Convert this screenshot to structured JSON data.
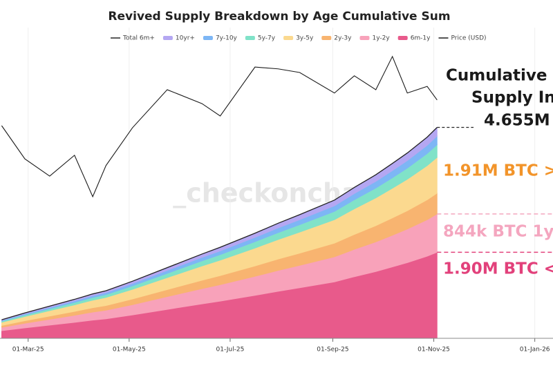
{
  "chart_data": {
    "type": "stacked-area-line",
    "title": "Revived Supply Breakdown by Age Cumulative Sum",
    "watermark": "_checkonchain",
    "x": [
      "2025-02-13",
      "2025-02-27",
      "2025-03-14",
      "2025-03-29",
      "2025-04-09",
      "2025-04-17",
      "2025-05-03",
      "2025-05-24",
      "2025-06-14",
      "2025-06-25",
      "2025-07-16",
      "2025-07-30",
      "2025-08-12",
      "2025-09-02",
      "2025-09-14",
      "2025-09-27",
      "2025-10-07",
      "2025-10-16",
      "2025-10-28",
      "2025-11-03"
    ],
    "xlim": [
      "2025-02-12",
      "2026-01-12"
    ],
    "xticks": [
      {
        "value": "2025-03-01",
        "label": "01-Mar-25"
      },
      {
        "value": "2025-05-01",
        "label": "01-May-25"
      },
      {
        "value": "2025-07-01",
        "label": "01-Jul-25"
      },
      {
        "value": "2025-09-01",
        "label": "01-Sep-25"
      },
      {
        "value": "2025-11-01",
        "label": "01-Nov-25"
      },
      {
        "value": "2026-01-01",
        "label": "01-Jan-26"
      }
    ],
    "ylim": [
      0,
      6.4
    ],
    "y2lim": [
      30000,
      126000
    ],
    "grid": true,
    "legend": "top",
    "series": [
      {
        "name": "Total 6m+",
        "kind": "line",
        "color": "#222222",
        "values": [
          0.41,
          0.56,
          0.71,
          0.86,
          0.98,
          1.05,
          1.26,
          1.56,
          1.86,
          2.01,
          2.32,
          2.54,
          2.73,
          3.05,
          3.33,
          3.61,
          3.86,
          4.09,
          4.44,
          4.655
        ]
      },
      {
        "name": "10yr+",
        "kind": "area",
        "color": "#b4a7f2",
        "values": [
          0.017,
          0.023,
          0.029,
          0.035,
          0.04,
          0.043,
          0.052,
          0.064,
          0.076,
          0.082,
          0.095,
          0.104,
          0.112,
          0.125,
          0.137,
          0.148,
          0.158,
          0.168,
          0.182,
          0.191
        ]
      },
      {
        "name": "7y-10y",
        "kind": "area",
        "color": "#7db6f5",
        "values": [
          0.017,
          0.023,
          0.029,
          0.035,
          0.04,
          0.043,
          0.051,
          0.064,
          0.076,
          0.082,
          0.095,
          0.104,
          0.111,
          0.124,
          0.136,
          0.147,
          0.158,
          0.167,
          0.181,
          0.19
        ]
      },
      {
        "name": "5y-7y",
        "kind": "area",
        "color": "#80e2c8",
        "values": [
          0.025,
          0.034,
          0.043,
          0.052,
          0.059,
          0.063,
          0.076,
          0.094,
          0.112,
          0.121,
          0.14,
          0.153,
          0.164,
          0.183,
          0.2,
          0.217,
          0.232,
          0.246,
          0.267,
          0.28
        ]
      },
      {
        "name": "3y-5y",
        "kind": "area",
        "color": "#fbd98f",
        "values": [
          0.07,
          0.095,
          0.12,
          0.146,
          0.166,
          0.178,
          0.214,
          0.265,
          0.316,
          0.341,
          0.394,
          0.431,
          0.463,
          0.518,
          0.565,
          0.613,
          0.655,
          0.694,
          0.754,
          0.79
        ]
      },
      {
        "name": "2y-3y",
        "kind": "area",
        "color": "#f8b470",
        "values": [
          0.041,
          0.055,
          0.07,
          0.085,
          0.097,
          0.104,
          0.125,
          0.154,
          0.184,
          0.199,
          0.229,
          0.251,
          0.27,
          0.301,
          0.329,
          0.357,
          0.381,
          0.404,
          0.439,
          0.46
        ]
      },
      {
        "name": "1y-2y",
        "kind": "area",
        "color": "#f8a2ba",
        "values": [
          0.074,
          0.102,
          0.129,
          0.156,
          0.178,
          0.19,
          0.228,
          0.283,
          0.337,
          0.364,
          0.421,
          0.46,
          0.495,
          0.553,
          0.604,
          0.655,
          0.7,
          0.742,
          0.805,
          0.844
        ]
      },
      {
        "name": "6m-1y",
        "kind": "area",
        "color": "#e85a8b",
        "values": [
          0.167,
          0.229,
          0.29,
          0.351,
          0.4,
          0.429,
          0.514,
          0.637,
          0.759,
          0.82,
          0.947,
          1.037,
          1.114,
          1.245,
          1.359,
          1.473,
          1.575,
          1.669,
          1.812,
          1.9
        ]
      },
      {
        "name": "Price (USD)",
        "kind": "line",
        "axis": "y2",
        "color": "#1a1a1a",
        "values": [
          100400,
          89400,
          83700,
          90600,
          76900,
          87200,
          99700,
          112300,
          107700,
          103600,
          119800,
          119200,
          118000,
          111200,
          116900,
          112300,
          123300,
          111200,
          113400,
          108900
        ]
      }
    ],
    "annotations": [
      {
        "text": "Cumulative",
        "color": "#1a1a1a"
      },
      {
        "text": "Supply In",
        "color": "#1a1a1a"
      },
      {
        "text": "4.655M",
        "color": "#1a1a1a"
      },
      {
        "text": "1.91M BTC >",
        "color": "#f2942a"
      },
      {
        "text": "844k BTC 1y",
        "color": "#f4a6bf"
      },
      {
        "text": "1.90M BTC <",
        "color": "#e2417b"
      }
    ]
  }
}
